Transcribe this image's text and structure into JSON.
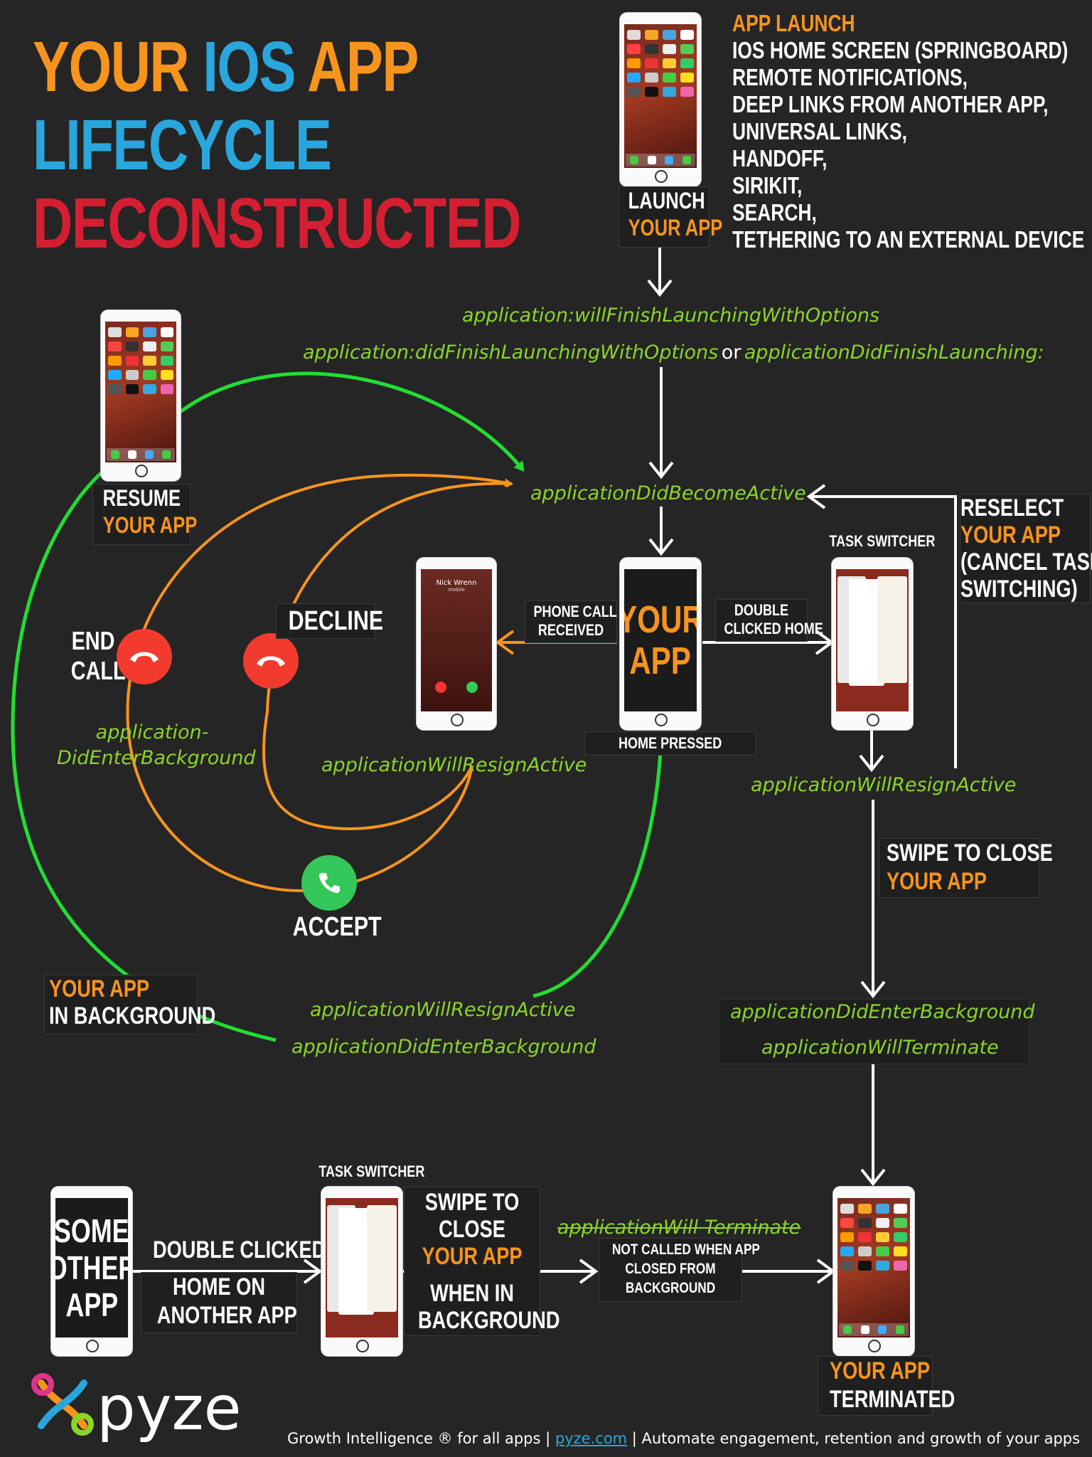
{
  "title": {
    "line1_a": "YOUR ",
    "line1_b": "IOS",
    "line1_c": " APP",
    "line2": "LIFECYCLE",
    "line3": "DECONSTRUCTED"
  },
  "launch": {
    "label_line1": "LAUNCH",
    "label_line2": "YOUR APP",
    "heading": "APP LAUNCH",
    "sources": [
      "IOS HOME SCREEN (SPRINGBOARD)",
      "REMOTE NOTIFICATIONS,",
      "DEEP LINKS FROM ANOTHER APP,",
      "UNIVERSAL LINKS,",
      "HANDOFF,",
      "SIRIKIT,",
      "SEARCH,",
      "TETHERING TO AN EXTERNAL DEVICE"
    ]
  },
  "methods": {
    "will_finish": "application:willFinishLaunchingWithOptions",
    "did_finish": "application:didFinishLaunchingWithOptions",
    "or": "or",
    "did_finish_alt": "applicationDidFinishLaunching:",
    "did_become_active": "applicationDidBecomeActive",
    "did_enter_bg_left_1": "application-",
    "did_enter_bg_left_2": "DidEnterBackground",
    "will_resign_call": "applicationWillResignActive",
    "will_resign_switcher": "applicationWillResignActive",
    "will_resign_bottom": "applicationWillResignActive",
    "did_enter_bg_bottom": "applicationDidEnterBackground",
    "did_enter_bg_right": "applicationDidEnterBackground",
    "will_terminate_right": "applicationWillTerminate",
    "will_terminate_struck": "applicationWill Terminate"
  },
  "resume": {
    "line1": "RESUME",
    "line2": "YOUR APP"
  },
  "call": {
    "end_call_1": "END",
    "end_call_2": "CALL",
    "decline": "DECLINE",
    "accept": "ACCEPT",
    "caller_name": "Nick Wrenn",
    "caller_sub": "mobile",
    "phone_call_1": "PHONE CALL",
    "phone_call_2": "RECEIVED"
  },
  "center": {
    "app_line1": "YOUR",
    "app_line2": "APP",
    "home_pressed": "HOME PRESSED",
    "double_clicked_1": "DOUBLE",
    "double_clicked_2": "CLICKED HOME"
  },
  "switcher": {
    "title": "TASK SWITCHER",
    "reselect_1": "RESELECT",
    "reselect_2": "YOUR APP",
    "reselect_3": "(CANCEL TASK",
    "reselect_4": "SWITCHING)",
    "swipe_1": "SWIPE TO CLOSE",
    "swipe_2": "YOUR APP"
  },
  "background": {
    "line1": "YOUR APP",
    "line2": "IN BACKGROUND"
  },
  "bottom": {
    "other_app_1": "SOME",
    "other_app_2": "OTHER",
    "other_app_3": "APP",
    "double_clicked_1": "DOUBLE CLICKED",
    "double_clicked_2": "HOME ON",
    "double_clicked_3": "ANOTHER APP",
    "switcher_title": "TASK SWITCHER",
    "swipe_1": "SWIPE TO",
    "swipe_2": "CLOSE",
    "swipe_3": "YOUR APP",
    "when_1": "WHEN IN",
    "when_2": "BACKGROUND",
    "not_called_1": "NOT CALLED WHEN APP",
    "not_called_2": "CLOSED FROM",
    "not_called_3": "BACKGROUND",
    "terminated_1": "YOUR APP",
    "terminated_2": "TERMINATED"
  },
  "footer": {
    "brand": "pyze",
    "text_a": "Growth Intelligence ® for all apps  |  ",
    "link": "pyze.com",
    "text_b": " | Automate engagement, retention and growth of your apps"
  },
  "colors": {
    "background": "#252525",
    "orange": "#f7941d",
    "blue": "#29a6dc",
    "red": "#d41f33",
    "green_text": "#8bd42a",
    "green_arrow": "#22dd33",
    "decline_red": "#f23b2e",
    "accept_green": "#35c759"
  }
}
